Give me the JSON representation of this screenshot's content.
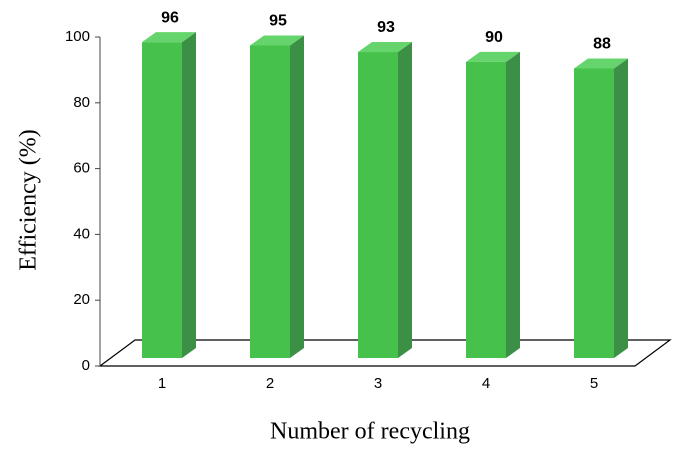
{
  "chart_data": {
    "type": "bar",
    "x_label": "Number of recycling",
    "y_label": "Efficiency (%)",
    "categories": [
      "1",
      "2",
      "3",
      "4",
      "5"
    ],
    "values": [
      96,
      95,
      93,
      90,
      88
    ],
    "color": "#46c24c",
    "ylim": [
      0,
      100
    ],
    "yticks": [
      0,
      20,
      40,
      60,
      80,
      100
    ]
  }
}
